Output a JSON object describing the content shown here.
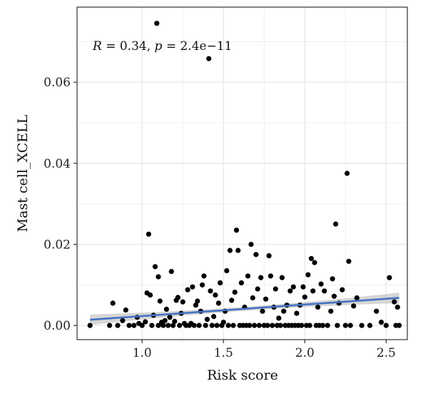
{
  "chart_data": {
    "type": "scatter",
    "xlabel": "Risk score",
    "ylabel": "Mast cell_XCELL",
    "annotation": {
      "r_label": "R",
      "r_text": " = 0.34, ",
      "p_label": "p",
      "p_text": " = 2.4e−11"
    },
    "xlim": [
      0.6,
      2.63
    ],
    "ylim": [
      -0.0035,
      0.0785
    ],
    "x_ticks": [
      1.0,
      1.5,
      2.0,
      2.5
    ],
    "x_tick_labels": [
      "1.0",
      "1.5",
      "2.0",
      "2.5"
    ],
    "y_ticks": [
      0.0,
      0.02,
      0.04,
      0.06
    ],
    "y_tick_labels": [
      "0.00",
      "0.02",
      "0.04",
      "0.06"
    ],
    "grid": true,
    "colors": {
      "points": "#000000",
      "regression_line": "#4472c4",
      "confidence_band": "#c8c8c8",
      "grid": "#ebebeb",
      "panel_border": "#333333"
    },
    "regression": {
      "x_range": [
        0.68,
        2.58
      ],
      "y_at_start": 0.0014,
      "y_at_end": 0.0068,
      "ci_halfwidth_at_ends": 0.0013,
      "ci_halfwidth_at_center": 0.0005
    },
    "points": [
      [
        0.68,
        0.0
      ],
      [
        0.8,
        0.0
      ],
      [
        0.82,
        0.0055
      ],
      [
        0.85,
        0.0
      ],
      [
        0.88,
        0.0012
      ],
      [
        0.9,
        0.0038
      ],
      [
        0.92,
        0.0
      ],
      [
        0.95,
        0.0
      ],
      [
        0.97,
        0.002
      ],
      [
        0.98,
        0.0005
      ],
      [
        1.0,
        0.0
      ],
      [
        1.02,
        0.0009
      ],
      [
        1.03,
        0.008
      ],
      [
        1.04,
        0.0225
      ],
      [
        1.05,
        0.0075
      ],
      [
        1.06,
        0.0
      ],
      [
        1.07,
        0.0025
      ],
      [
        1.08,
        0.0145
      ],
      [
        1.09,
        0.0745
      ],
      [
        1.1,
        0.012
      ],
      [
        1.1,
        0.0
      ],
      [
        1.11,
        0.006
      ],
      [
        1.12,
        0.0008
      ],
      [
        1.13,
        0.0
      ],
      [
        1.14,
        0.0012
      ],
      [
        1.15,
        0.004
      ],
      [
        1.16,
        0.0
      ],
      [
        1.17,
        0.002
      ],
      [
        1.18,
        0.0133
      ],
      [
        1.19,
        0.0
      ],
      [
        1.2,
        0.001
      ],
      [
        1.21,
        0.0062
      ],
      [
        1.22,
        0.0069
      ],
      [
        1.23,
        0.0
      ],
      [
        1.24,
        0.003
      ],
      [
        1.25,
        0.0058
      ],
      [
        1.26,
        0.0005
      ],
      [
        1.27,
        0.0
      ],
      [
        1.28,
        0.0088
      ],
      [
        1.29,
        0.0
      ],
      [
        1.3,
        0.0005
      ],
      [
        1.31,
        0.0095
      ],
      [
        1.32,
        0.0
      ],
      [
        1.33,
        0.005
      ],
      [
        1.34,
        0.006
      ],
      [
        1.35,
        0.0
      ],
      [
        1.36,
        0.0035
      ],
      [
        1.37,
        0.01
      ],
      [
        1.38,
        0.0122
      ],
      [
        1.39,
        0.0
      ],
      [
        1.4,
        0.0015
      ],
      [
        1.41,
        0.0658
      ],
      [
        1.42,
        0.0085
      ],
      [
        1.43,
        0.0
      ],
      [
        1.44,
        0.0022
      ],
      [
        1.45,
        0.0075
      ],
      [
        1.46,
        0.0
      ],
      [
        1.47,
        0.0055
      ],
      [
        1.48,
        0.0105
      ],
      [
        1.49,
        0.0
      ],
      [
        1.5,
        0.0008
      ],
      [
        1.51,
        0.0035
      ],
      [
        1.52,
        0.0135
      ],
      [
        1.53,
        0.0
      ],
      [
        1.54,
        0.0185
      ],
      [
        1.55,
        0.0062
      ],
      [
        1.56,
        0.0
      ],
      [
        1.57,
        0.0082
      ],
      [
        1.58,
        0.0235
      ],
      [
        1.59,
        0.0185
      ],
      [
        1.6,
        0.0
      ],
      [
        1.61,
        0.0105
      ],
      [
        1.62,
        0.0
      ],
      [
        1.63,
        0.0045
      ],
      [
        1.64,
        0.0
      ],
      [
        1.65,
        0.0122
      ],
      [
        1.66,
        0.0
      ],
      [
        1.67,
        0.02
      ],
      [
        1.68,
        0.0068
      ],
      [
        1.69,
        0.0
      ],
      [
        1.7,
        0.0175
      ],
      [
        1.71,
        0.009
      ],
      [
        1.72,
        0.0
      ],
      [
        1.73,
        0.0118
      ],
      [
        1.74,
        0.0035
      ],
      [
        1.75,
        0.0
      ],
      [
        1.76,
        0.0065
      ],
      [
        1.77,
        0.0
      ],
      [
        1.78,
        0.0172
      ],
      [
        1.79,
        0.0122
      ],
      [
        1.8,
        0.0
      ],
      [
        1.81,
        0.0045
      ],
      [
        1.82,
        0.009
      ],
      [
        1.83,
        0.0
      ],
      [
        1.84,
        0.0018
      ],
      [
        1.85,
        0.0
      ],
      [
        1.86,
        0.0118
      ],
      [
        1.87,
        0.0035
      ],
      [
        1.88,
        0.0
      ],
      [
        1.89,
        0.005
      ],
      [
        1.9,
        0.0
      ],
      [
        1.91,
        0.0085
      ],
      [
        1.92,
        0.0
      ],
      [
        1.93,
        0.0095
      ],
      [
        1.94,
        0.0
      ],
      [
        1.95,
        0.003
      ],
      [
        1.96,
        0.0
      ],
      [
        1.97,
        0.005
      ],
      [
        1.98,
        0.0
      ],
      [
        1.99,
        0.0095
      ],
      [
        2.0,
        0.007
      ],
      [
        2.01,
        0.0
      ],
      [
        2.02,
        0.0125
      ],
      [
        2.03,
        0.0
      ],
      [
        2.04,
        0.0165
      ],
      [
        2.05,
        0.0085
      ],
      [
        2.06,
        0.0155
      ],
      [
        2.07,
        0.0
      ],
      [
        2.08,
        0.0045
      ],
      [
        2.09,
        0.0
      ],
      [
        2.1,
        0.0102
      ],
      [
        2.11,
        0.0
      ],
      [
        2.12,
        0.0085
      ],
      [
        2.14,
        0.0
      ],
      [
        2.16,
        0.0035
      ],
      [
        2.17,
        0.0115
      ],
      [
        2.18,
        0.0072
      ],
      [
        2.19,
        0.025
      ],
      [
        2.2,
        0.0
      ],
      [
        2.21,
        0.0055
      ],
      [
        2.23,
        0.0088
      ],
      [
        2.25,
        0.0
      ],
      [
        2.26,
        0.0375
      ],
      [
        2.27,
        0.0158
      ],
      [
        2.28,
        0.0
      ],
      [
        2.3,
        0.0048
      ],
      [
        2.32,
        0.0068
      ],
      [
        2.35,
        0.0
      ],
      [
        2.4,
        0.0
      ],
      [
        2.44,
        0.0035
      ],
      [
        2.47,
        0.0008
      ],
      [
        2.5,
        0.0
      ],
      [
        2.52,
        0.0118
      ],
      [
        2.55,
        0.0058
      ],
      [
        2.56,
        0.0
      ],
      [
        2.57,
        0.0045
      ],
      [
        2.58,
        0.0
      ]
    ]
  }
}
